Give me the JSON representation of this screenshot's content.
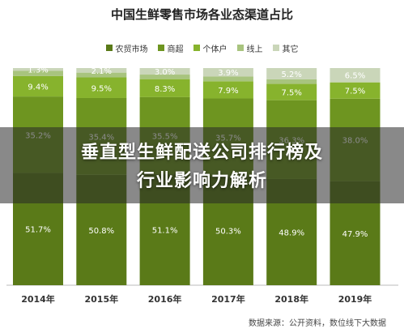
{
  "overlay": {
    "line1": "垂直型生鲜配送公司排行榜及",
    "line2": "行业影响力解析"
  },
  "source": "数据来源：公开资料，数位线下大数据",
  "colors": {
    "农贸市场": "#5a7a18",
    "商超": "#6e9520",
    "个体户": "#87b32d",
    "线上": "#a8c47e",
    "其它": "#cad6b9"
  },
  "chart_data": {
    "type": "bar",
    "stacked": true,
    "percent": true,
    "title": "中国生鲜零售市场各业态渠道占比",
    "legend_position": "top",
    "categories": [
      "2014年",
      "2015年",
      "2016年",
      "2017年",
      "2018年",
      "2019年"
    ],
    "ylim": [
      0,
      100
    ],
    "series": [
      {
        "name": "农贸市场",
        "values": [
          51.7,
          50.8,
          51.1,
          50.3,
          48.9,
          47.9
        ],
        "labels": [
          "51.7%",
          "50.8%",
          "51.1%",
          "50.3%",
          "48.9%",
          "47.9%"
        ]
      },
      {
        "name": "商超",
        "values": [
          35.2,
          35.4,
          35.5,
          35.7,
          36.3,
          38.0
        ],
        "labels": [
          "35.2%",
          "35.4%",
          "35.5%",
          "35.7%",
          "36.3%",
          "38.0%"
        ]
      },
      {
        "name": "个体户",
        "values": [
          9.4,
          9.5,
          8.3,
          7.9,
          7.5,
          7.5
        ],
        "labels": [
          "9.4%",
          "9.5%",
          "8.3%",
          "7.9%",
          "7.5%",
          "7.5%"
        ]
      },
      {
        "name": "线上",
        "values": [
          2.4,
          2.2,
          2.1,
          2.2,
          2.1,
          0.1
        ],
        "labels": []
      },
      {
        "name": "其它",
        "values": [
          1.3,
          2.1,
          3.0,
          3.9,
          5.2,
          6.5
        ],
        "labels": [
          "1.3%",
          "2.1%",
          "3.0%",
          "3.9%",
          "5.2%",
          "6.5%"
        ]
      }
    ]
  }
}
